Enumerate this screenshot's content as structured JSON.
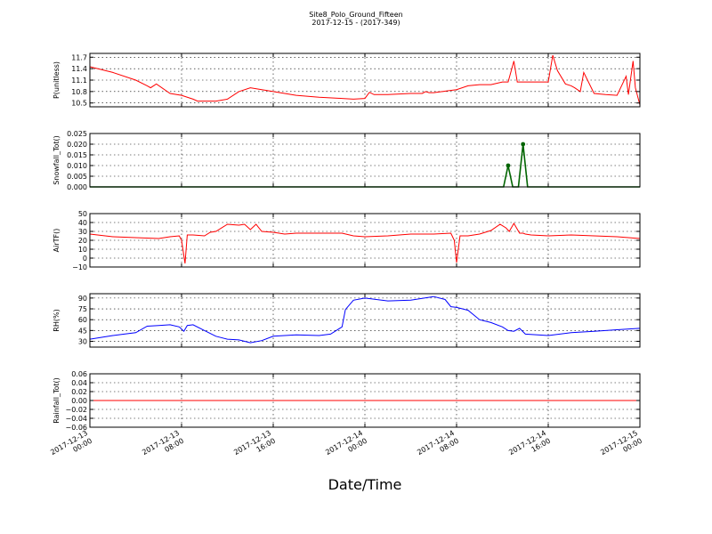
{
  "title": "Site8_Polo_Ground_Fifteen",
  "subtitle": "2017-12-15 - (2017-349)",
  "xlabel": "Date/Time",
  "x_ticks": [
    "2017-12-13 00:00",
    "2017-12-13 08:00",
    "2017-12-13 16:00",
    "2017-12-14 00:00",
    "2017-12-14 08:00",
    "2017-12-14 16:00",
    "2017-12-15 00:00"
  ],
  "x_tick_lines": [
    [
      "2017-12-13",
      "00:00"
    ],
    [
      "2017-12-13",
      "08:00"
    ],
    [
      "2017-12-13",
      "16:00"
    ],
    [
      "2017-12-14",
      "00:00"
    ],
    [
      "2017-12-14",
      "08:00"
    ],
    [
      "2017-12-14",
      "16:00"
    ],
    [
      "2017-12-15",
      "00:00"
    ]
  ],
  "chart_data": [
    {
      "type": "line",
      "ylabel": "P(unitless)",
      "ylim": [
        10.4,
        11.8
      ],
      "yticks": [
        "10.5",
        "10.8",
        "11.1",
        "11.4",
        "11.7"
      ],
      "color": "#ff0000",
      "grid": true,
      "x_hours": [
        0,
        2,
        4,
        5,
        5.3,
        5.8,
        7,
        8,
        9,
        9.4,
        9.8,
        10.2,
        11,
        12,
        13,
        14,
        15,
        16,
        17,
        18,
        20,
        22,
        23,
        24,
        24.4,
        24.8,
        26,
        28,
        29,
        29.3,
        29.6,
        30,
        32,
        33,
        34,
        35,
        36,
        36.5,
        37,
        37.3,
        38,
        40,
        40.4,
        40.8,
        41.5,
        42,
        42.3,
        42.8,
        43.1,
        44,
        45,
        46,
        46.8,
        47,
        47.4,
        47.6,
        48
      ],
      "values": [
        11.45,
        11.3,
        11.1,
        10.95,
        10.9,
        11.0,
        10.75,
        10.7,
        10.6,
        10.55,
        10.55,
        10.55,
        10.55,
        10.6,
        10.8,
        10.9,
        10.85,
        10.8,
        10.75,
        10.7,
        10.65,
        10.62,
        10.6,
        10.62,
        10.78,
        10.72,
        10.72,
        10.75,
        10.75,
        10.8,
        10.77,
        10.77,
        10.85,
        10.95,
        10.98,
        10.98,
        11.05,
        11.05,
        11.6,
        11.05,
        11.05,
        11.05,
        11.75,
        11.35,
        11.0,
        10.95,
        10.9,
        10.8,
        11.3,
        10.75,
        10.72,
        10.7,
        11.2,
        10.72,
        11.6,
        10.9,
        10.45
      ]
    },
    {
      "type": "line",
      "ylabel": "Snowfall_Tot()",
      "ylim": [
        0,
        0.025
      ],
      "yticks": [
        "0.000",
        "0.005",
        "0.010",
        "0.015",
        "0.020",
        "0.025"
      ],
      "color": "#006400",
      "grid": true,
      "markers": true,
      "x_hours": [
        0,
        36.1,
        36.5,
        36.9,
        37.4,
        37.8,
        38.2,
        48
      ],
      "values": [
        0,
        0,
        0.01,
        0,
        0,
        0.02,
        0,
        0
      ]
    },
    {
      "type": "line",
      "ylabel": "AirTF()",
      "ylim": [
        -10,
        50
      ],
      "yticks": [
        "−10",
        "0",
        "10",
        "20",
        "30",
        "40",
        "50"
      ],
      "color": "#ff0000",
      "grid": true,
      "x_hours": [
        0,
        2,
        4,
        6,
        7,
        7.8,
        8,
        8.3,
        8.5,
        9,
        10,
        10.5,
        11,
        12,
        13,
        13.5,
        14,
        14.5,
        15,
        16,
        17,
        18,
        20,
        21,
        22,
        23,
        24,
        26,
        28,
        30,
        31.5,
        31.8,
        32,
        32.3,
        33,
        34,
        35,
        35.8,
        36.3,
        36.6,
        37,
        37.5,
        37.8,
        38,
        38.5,
        40,
        42,
        44,
        46,
        48
      ],
      "values": [
        27,
        24,
        23,
        22,
        24,
        25,
        20,
        -6,
        26,
        26,
        25,
        29,
        30,
        38,
        37,
        38,
        32,
        38,
        30,
        29,
        27,
        28,
        28,
        28,
        28,
        25,
        24,
        25,
        27,
        27,
        28,
        20,
        -5,
        25,
        25,
        27,
        31,
        38,
        34,
        30,
        39,
        28,
        28,
        27,
        26,
        25,
        26,
        25,
        24,
        22
      ]
    },
    {
      "type": "line",
      "ylabel": "RH(%)",
      "ylim": [
        22,
        96
      ],
      "yticks": [
        "30",
        "45",
        "60",
        "75",
        "90"
      ],
      "color": "#0000ff",
      "grid": true,
      "x_hours": [
        0,
        2,
        3,
        4,
        5,
        6,
        7,
        7.8,
        8.2,
        8.5,
        9,
        10,
        11,
        12,
        13,
        14,
        15,
        16,
        17,
        18,
        20,
        21,
        22,
        22.3,
        23,
        24,
        25,
        26,
        28,
        30,
        31,
        31.5,
        32,
        33,
        34,
        35,
        36,
        36.5,
        37,
        37.5,
        38,
        40,
        42,
        44,
        46,
        48
      ],
      "values": [
        33,
        38,
        40,
        42,
        51,
        52,
        53,
        50,
        44,
        52,
        53,
        45,
        37,
        33,
        32,
        28,
        31,
        37,
        38,
        39,
        38,
        40,
        50,
        74,
        87,
        90,
        88,
        86,
        87,
        92,
        88,
        78,
        77,
        73,
        60,
        56,
        50,
        45,
        44,
        48,
        40,
        38,
        42,
        44,
        46,
        48
      ]
    },
    {
      "type": "line",
      "ylabel": "Rainfall_Tot()",
      "ylim": [
        -0.06,
        0.06
      ],
      "yticks": [
        "−0.06",
        "−0.04",
        "−0.02",
        "0.00",
        "0.02",
        "0.04",
        "0.06"
      ],
      "color": "#ff0000",
      "grid": true,
      "x_hours": [
        0,
        48
      ],
      "values": [
        0,
        0
      ]
    }
  ]
}
